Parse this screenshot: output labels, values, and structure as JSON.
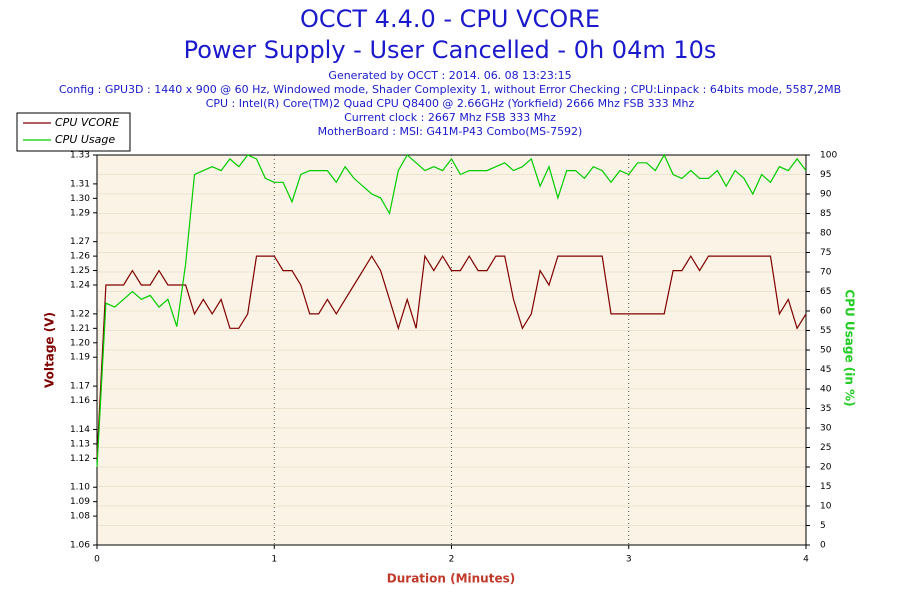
{
  "chart_data": {
    "type": "line",
    "title": "OCCT 4.4.0 - CPU VCORE",
    "subtitle": "Power Supply - User Cancelled - 0h 04m 10s",
    "info": [
      "Generated by OCCT : 2014. 06. 08 13:23:15",
      "Config : GPU3D : 1440 x 900 @ 60 Hz, Windowed mode, Shader Complexity 1, without Error Checking ; CPU:Linpack : 64bits mode, 5587,2MB",
      "CPU : Intel(R) Core(TM)2 Quad CPU Q8400 @ 2.66GHz (Yorkfield) 2666 Mhz FSB 333 Mhz",
      "Current clock : 2667 Mhz FSB 333 Mhz",
      "MotherBoard : MSI: G41M-P43 Combo(MS-7592)"
    ],
    "xlabel": "Duration (Minutes)",
    "ylabel": "Voltage (V)",
    "y2label": "CPU Usage (in %)",
    "x": [
      0,
      0.05,
      0.1,
      0.15,
      0.2,
      0.25,
      0.3,
      0.35,
      0.4,
      0.45,
      0.5,
      0.55,
      0.6,
      0.65,
      0.7,
      0.75,
      0.8,
      0.85,
      0.9,
      0.95,
      1,
      1.05,
      1.1,
      1.15,
      1.2,
      1.25,
      1.3,
      1.35,
      1.4,
      1.45,
      1.5,
      1.55,
      1.6,
      1.65,
      1.7,
      1.75,
      1.8,
      1.85,
      1.9,
      1.95,
      2,
      2.05,
      2.1,
      2.15,
      2.2,
      2.25,
      2.3,
      2.35,
      2.4,
      2.45,
      2.5,
      2.55,
      2.6,
      2.65,
      2.7,
      2.75,
      2.8,
      2.85,
      2.9,
      2.95,
      3,
      3.05,
      3.1,
      3.15,
      3.2,
      3.25,
      3.3,
      3.35,
      3.4,
      3.45,
      3.5,
      3.55,
      3.6,
      3.65,
      3.7,
      3.75,
      3.8,
      3.85,
      3.9,
      3.95,
      4
    ],
    "series": [
      {
        "name": "CPU VCORE",
        "color": "#800000",
        "values": [
          1.12,
          1.24,
          1.24,
          1.24,
          1.25,
          1.24,
          1.24,
          1.25,
          1.24,
          1.24,
          1.24,
          1.22,
          1.23,
          1.22,
          1.23,
          1.21,
          1.21,
          1.22,
          1.26,
          1.26,
          1.26,
          1.25,
          1.25,
          1.24,
          1.22,
          1.22,
          1.23,
          1.22,
          1.23,
          1.24,
          1.25,
          1.26,
          1.25,
          1.23,
          1.21,
          1.23,
          1.21,
          1.26,
          1.25,
          1.26,
          1.25,
          1.25,
          1.26,
          1.25,
          1.25,
          1.26,
          1.26,
          1.23,
          1.21,
          1.22,
          1.25,
          1.24,
          1.26,
          1.26,
          1.26,
          1.26,
          1.26,
          1.26,
          1.22,
          1.22,
          1.22,
          1.22,
          1.22,
          1.22,
          1.22,
          1.25,
          1.25,
          1.26,
          1.25,
          1.26,
          1.26,
          1.26,
          1.26,
          1.26,
          1.26,
          1.26,
          1.26,
          1.22,
          1.23,
          1.21,
          1.22
        ]
      },
      {
        "name": "CPU Usage",
        "color": "#00cc00",
        "axis": "y2",
        "values": [
          20,
          62,
          61,
          63,
          65,
          63,
          64,
          61,
          63,
          56,
          72,
          95,
          96,
          97,
          96,
          99,
          97,
          100,
          99,
          94,
          93,
          93,
          88,
          95,
          96,
          96,
          96,
          93,
          97,
          94,
          92,
          90,
          89,
          85,
          96,
          100,
          98,
          96,
          97,
          96,
          99,
          95,
          96,
          96,
          96,
          97,
          98,
          96,
          97,
          99,
          92,
          97,
          89,
          96,
          96,
          94,
          97,
          96,
          93,
          96,
          95,
          98,
          98,
          96,
          100,
          95,
          94,
          96,
          94,
          94,
          96,
          92,
          96,
          94,
          90,
          95,
          93,
          97,
          96,
          99,
          96
        ]
      }
    ],
    "xlim": [
      0,
      4
    ],
    "xticks": [
      0,
      1,
      2,
      3,
      4
    ],
    "ylim": [
      1.06,
      1.33
    ],
    "yticks": [
      1.06,
      1.08,
      1.09,
      {
        "value": 1.1,
        "label": "1.10"
      },
      1.12,
      1.13,
      1.14,
      1.16,
      1.17,
      1.19,
      {
        "value": 1.2,
        "label": "1.20"
      },
      1.21,
      1.22,
      1.24,
      1.25,
      1.26,
      1.27,
      1.29,
      {
        "value": 1.3,
        "label": "1.30"
      },
      1.31,
      1.33
    ],
    "y2lim": [
      0,
      100
    ],
    "y2ticks": [
      0,
      5,
      10,
      15,
      20,
      25,
      30,
      35,
      40,
      45,
      50,
      55,
      60,
      65,
      70,
      75,
      80,
      85,
      90,
      95,
      100
    ],
    "grid": true,
    "legend": "top-left"
  }
}
